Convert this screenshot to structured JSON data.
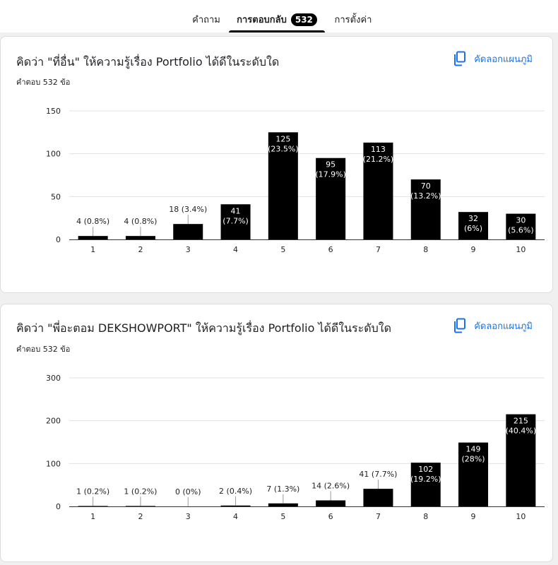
{
  "tabs": [
    {
      "label": "คำถาม"
    },
    {
      "label": "การตอบกลับ",
      "badge": "532"
    },
    {
      "label": "การตั้งค่า"
    }
  ],
  "copy_label": "คัดลอกแผนภูมิ",
  "colors": {
    "bar": "#000000",
    "accent": "#1a73e8",
    "grid": "#e0e0e0"
  },
  "questions": [
    {
      "title": "คิดว่า \"ที่อื่น\" ให้ความรู้เรื่อง Portfolio ได้ดีในระดับใด",
      "responses": "คำตอบ 532 ข้อ",
      "chart_data": {
        "type": "bar",
        "categories": [
          "1",
          "2",
          "3",
          "4",
          "5",
          "6",
          "7",
          "8",
          "9",
          "10"
        ],
        "values": [
          4,
          4,
          18,
          41,
          125,
          95,
          113,
          70,
          32,
          30
        ],
        "percents": [
          "0.8%",
          "0.8%",
          "3.4%",
          "7.7%",
          "23.5%",
          "17.9%",
          "21.2%",
          "13.2%",
          "6%",
          "5.6%"
        ],
        "ylim": [
          0,
          150
        ],
        "yticks": [
          0,
          50,
          100,
          150
        ],
        "grid": true
      }
    },
    {
      "title": "คิดว่า \"พี่อะตอม DEKSHOWPORT\" ให้ความรู้เรื่อง Portfolio ได้ดีในระดับใด",
      "responses": "คำตอบ 532 ข้อ",
      "chart_data": {
        "type": "bar",
        "categories": [
          "1",
          "2",
          "3",
          "4",
          "5",
          "6",
          "7",
          "8",
          "9",
          "10"
        ],
        "values": [
          1,
          1,
          0,
          2,
          7,
          14,
          41,
          102,
          149,
          215
        ],
        "percents": [
          "0.2%",
          "0.2%",
          "0%",
          "0.4%",
          "1.3%",
          "2.6%",
          "7.7%",
          "19.2%",
          "28%",
          "40.4%"
        ],
        "ylim": [
          0,
          300
        ],
        "yticks": [
          0,
          100,
          200,
          300
        ],
        "grid": true
      }
    }
  ]
}
